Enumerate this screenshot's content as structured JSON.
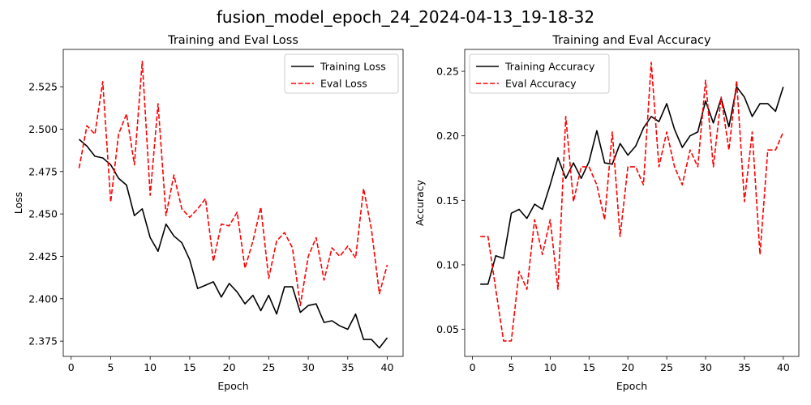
{
  "figure": {
    "suptitle": "fusion_model_epoch_24_2024-04-13_19-18-32"
  },
  "colors": {
    "training": "#000000",
    "eval": "#ff0000"
  },
  "chart_data": [
    {
      "type": "line",
      "title": "Training and Eval Loss",
      "xlabel": "Epoch",
      "ylabel": "Loss",
      "xlim": [
        -1,
        42
      ],
      "ylim": [
        2.366,
        2.547
      ],
      "xticks": [
        0,
        5,
        10,
        15,
        20,
        25,
        30,
        35,
        40
      ],
      "yticks": [
        2.375,
        2.4,
        2.425,
        2.45,
        2.475,
        2.5,
        2.525
      ],
      "ytick_decimals": 3,
      "legend_position": "top-right",
      "x": [
        1,
        2,
        3,
        4,
        5,
        6,
        7,
        8,
        9,
        10,
        11,
        12,
        13,
        14,
        15,
        16,
        17,
        18,
        19,
        20,
        21,
        22,
        23,
        24,
        25,
        26,
        27,
        28,
        29,
        30,
        31,
        32,
        33,
        34,
        35,
        36,
        37,
        38,
        39,
        40
      ],
      "series": [
        {
          "name": "Training Loss",
          "color": "#000000",
          "style": "solid",
          "values": [
            2.494,
            2.49,
            2.484,
            2.483,
            2.479,
            2.471,
            2.467,
            2.449,
            2.453,
            2.436,
            2.428,
            2.444,
            2.437,
            2.433,
            2.423,
            2.406,
            2.408,
            2.41,
            2.401,
            2.409,
            2.404,
            2.397,
            2.402,
            2.393,
            2.402,
            2.391,
            2.407,
            2.407,
            2.392,
            2.396,
            2.397,
            2.386,
            2.387,
            2.384,
            2.382,
            2.391,
            2.376,
            2.376,
            2.371,
            2.377
          ]
        },
        {
          "name": "Eval Loss",
          "color": "#ff0000",
          "style": "dashed",
          "values": [
            2.477,
            2.502,
            2.497,
            2.528,
            2.457,
            2.497,
            2.509,
            2.479,
            2.54,
            2.461,
            2.515,
            2.449,
            2.473,
            2.453,
            2.448,
            2.453,
            2.459,
            2.422,
            2.444,
            2.443,
            2.451,
            2.418,
            2.434,
            2.454,
            2.412,
            2.434,
            2.439,
            2.43,
            2.396,
            2.425,
            2.436,
            2.411,
            2.43,
            2.425,
            2.431,
            2.424,
            2.465,
            2.441,
            2.403,
            2.42
          ]
        }
      ]
    },
    {
      "type": "line",
      "title": "Training and Eval Accuracy",
      "xlabel": "Epoch",
      "ylabel": "Accuracy",
      "xlim": [
        -1,
        42
      ],
      "ylim": [
        0.029,
        0.267
      ],
      "xticks": [
        0,
        5,
        10,
        15,
        20,
        25,
        30,
        35,
        40
      ],
      "yticks": [
        0.05,
        0.1,
        0.15,
        0.2,
        0.25
      ],
      "ytick_decimals": 2,
      "legend_position": "top-left",
      "x": [
        1,
        2,
        3,
        4,
        5,
        6,
        7,
        8,
        9,
        10,
        11,
        12,
        13,
        14,
        15,
        16,
        17,
        18,
        19,
        20,
        21,
        22,
        23,
        24,
        25,
        26,
        27,
        28,
        29,
        30,
        31,
        32,
        33,
        34,
        35,
        36,
        37,
        38,
        39,
        40
      ],
      "series": [
        {
          "name": "Training Accuracy",
          "color": "#000000",
          "style": "solid",
          "values": [
            0.085,
            0.085,
            0.107,
            0.105,
            0.14,
            0.143,
            0.136,
            0.147,
            0.143,
            0.162,
            0.183,
            0.167,
            0.179,
            0.167,
            0.18,
            0.204,
            0.179,
            0.178,
            0.194,
            0.185,
            0.192,
            0.206,
            0.215,
            0.211,
            0.225,
            0.205,
            0.191,
            0.2,
            0.203,
            0.227,
            0.21,
            0.229,
            0.207,
            0.238,
            0.23,
            0.215,
            0.225,
            0.225,
            0.219,
            0.238
          ]
        },
        {
          "name": "Eval Accuracy",
          "color": "#ff0000",
          "style": "dashed",
          "values": [
            0.122,
            0.122,
            0.081,
            0.041,
            0.041,
            0.095,
            0.081,
            0.135,
            0.108,
            0.135,
            0.081,
            0.215,
            0.149,
            0.176,
            0.176,
            0.162,
            0.135,
            0.203,
            0.122,
            0.176,
            0.176,
            0.162,
            0.257,
            0.176,
            0.203,
            0.176,
            0.162,
            0.189,
            0.176,
            0.243,
            0.176,
            0.23,
            0.189,
            0.243,
            0.149,
            0.203,
            0.108,
            0.189,
            0.189,
            0.203
          ]
        }
      ]
    }
  ]
}
